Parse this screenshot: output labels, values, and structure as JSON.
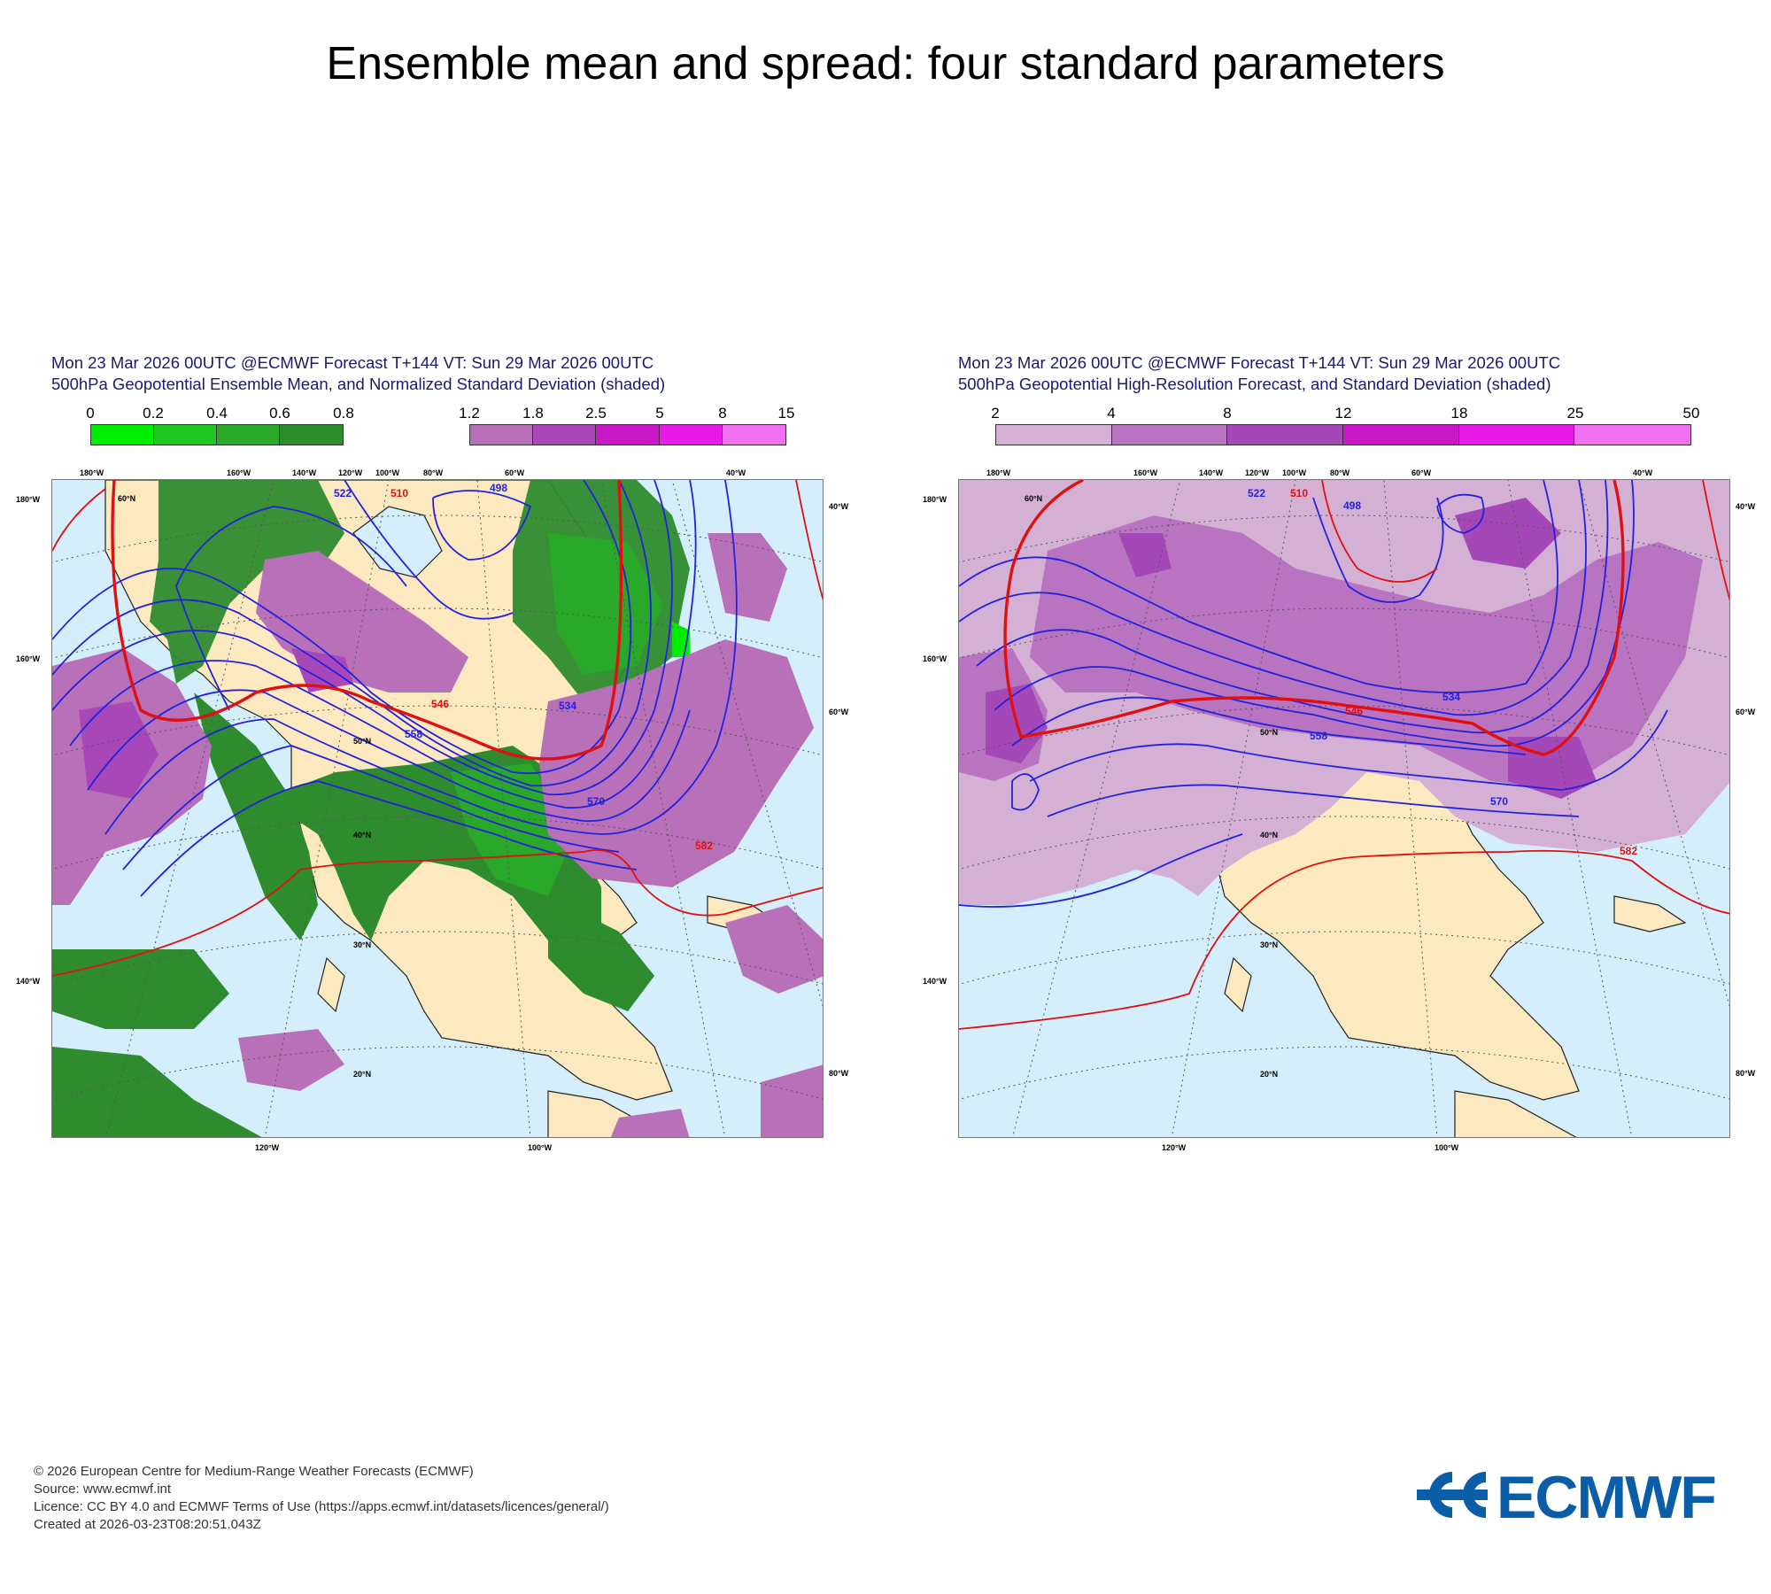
{
  "page": {
    "title": "Ensemble mean and spread: four standard parameters"
  },
  "colors": {
    "land": "#fde9bf",
    "ocean": "#d4eefb",
    "coast": "#222222",
    "contour_blue": "#2222dd",
    "contour_red": "#e01010",
    "graticule": "#555555",
    "title_text": "#1a1a6e"
  },
  "panels": [
    {
      "id": "left",
      "title_line1": "Mon 23 Mar 2026 00UTC @ECMWF Forecast T+144 VT: Sun 29 Mar 2026 00UTC",
      "title_line2": "500hPa Geopotential Ensemble Mean, and Normalized Standard Deviation (shaded)",
      "legend_green": {
        "ticks": [
          "0",
          "0.2",
          "0.4",
          "0.6",
          "0.8"
        ],
        "colors": [
          "#00ee00",
          "#22c622",
          "#2aa82a",
          "#2e8b2e"
        ]
      },
      "legend_purple": {
        "ticks": [
          "1.2",
          "1.8",
          "2.5",
          "5",
          "8",
          "15"
        ],
        "colors": [
          "#b870b8",
          "#a848b8",
          "#c818c8",
          "#e81ae8",
          "#f070f0"
        ]
      },
      "top_labels": [
        "180°W",
        "160°W",
        "140°W",
        "120°W",
        "100°W",
        "80°W",
        "60°W",
        "40°W"
      ],
      "left_labels": [
        "180°W",
        "160°W",
        "140°W"
      ],
      "right_labels": [
        "40°W",
        "60°W",
        "80°W"
      ],
      "bottom_labels": [
        "120°W",
        "100°W"
      ],
      "lat_labels": [
        "60°N",
        "50°N",
        "40°N",
        "30°N",
        "20°N"
      ],
      "contour_labels": [
        "498",
        "510",
        "522",
        "534",
        "546",
        "558",
        "570",
        "582"
      ]
    },
    {
      "id": "right",
      "title_line1": "Mon 23 Mar 2026 00UTC @ECMWF Forecast T+144 VT: Sun 29 Mar 2026 00UTC",
      "title_line2": "500hPa Geopotential High-Resolution Forecast, and Standard Deviation (shaded)",
      "legend": {
        "ticks": [
          "2",
          "4",
          "8",
          "12",
          "18",
          "25",
          "50"
        ],
        "colors": [
          "#d4b0d4",
          "#b874c0",
          "#a448b8",
          "#c818c8",
          "#e81ae8",
          "#f070f0"
        ]
      },
      "top_labels": [
        "180°W",
        "160°W",
        "140°W",
        "120°W",
        "100°W",
        "80°W",
        "60°W",
        "40°W"
      ],
      "left_labels": [
        "180°W",
        "160°W",
        "140°W"
      ],
      "right_labels": [
        "40°W",
        "60°W",
        "80°W"
      ],
      "bottom_labels": [
        "120°W",
        "100°W"
      ],
      "lat_labels": [
        "60°N",
        "50°N",
        "40°N",
        "30°N",
        "20°N"
      ],
      "contour_labels": [
        "498",
        "510",
        "522",
        "534",
        "546",
        "558",
        "570",
        "582"
      ]
    }
  ],
  "footer": {
    "line1": "© 2026 European Centre for Medium-Range Weather Forecasts (ECMWF)",
    "line2": "Source: www.ecmwf.int",
    "line3": "Licence: CC BY 4.0 and ECMWF Terms of Use (https://apps.ecmwf.int/datasets/licences/general/)",
    "line4": "Created at 2026-03-23T08:20:51.043Z"
  },
  "logo": {
    "text": "ECMWF",
    "color": "#0a5ea8"
  }
}
